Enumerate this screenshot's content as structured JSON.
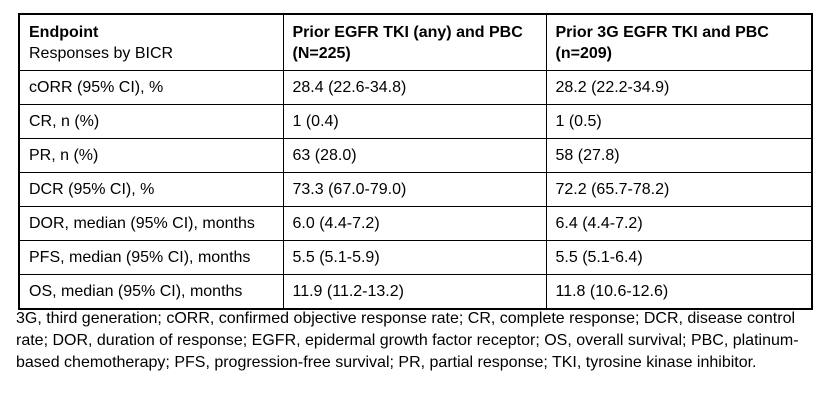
{
  "table": {
    "header": {
      "endpoint_line1": "Endpoint",
      "endpoint_line2": "Responses by BICR",
      "arm1_line1": "Prior EGFR TKI (any) and PBC",
      "arm1_line2": "(N=225)",
      "arm2_line1": "Prior 3G EGFR TKI and PBC",
      "arm2_line2": "(n=209)"
    },
    "rows": [
      {
        "endpoint": "cORR (95% CI), %",
        "arm1": "28.4 (22.6-34.8)",
        "arm2": "28.2 (22.2-34.9)"
      },
      {
        "endpoint": "CR, n (%)",
        "arm1": "1 (0.4)",
        "arm2": "1 (0.5)"
      },
      {
        "endpoint": "PR, n (%)",
        "arm1": "63 (28.0)",
        "arm2": "58 (27.8)"
      },
      {
        "endpoint": "DCR (95% CI), %",
        "arm1": "73.3 (67.0-79.0)",
        "arm2": "72.2 (65.7-78.2)"
      },
      {
        "endpoint": "DOR, median (95% CI), months",
        "arm1": "6.0 (4.4-7.2)",
        "arm2": "6.4 (4.4-7.2)"
      },
      {
        "endpoint": "PFS, median (95% CI), months",
        "arm1": "5.5 (5.1-5.9)",
        "arm2": "5.5 (5.1-6.4)"
      },
      {
        "endpoint": "OS, median (95% CI), months",
        "arm1": "11.9 (11.2-13.2)",
        "arm2": "11.8 (10.6-12.6)"
      }
    ],
    "footnote": "3G, third generation; cORR, confirmed objective response rate; CR, complete response; DCR, disease control rate; DOR, duration of response; EGFR, epidermal growth factor receptor; OS, overall survival; PBC, platinum-based chemotherapy; PFS, progression-free survival; PR, partial response; TKI, tyrosine kinase inhibitor."
  }
}
